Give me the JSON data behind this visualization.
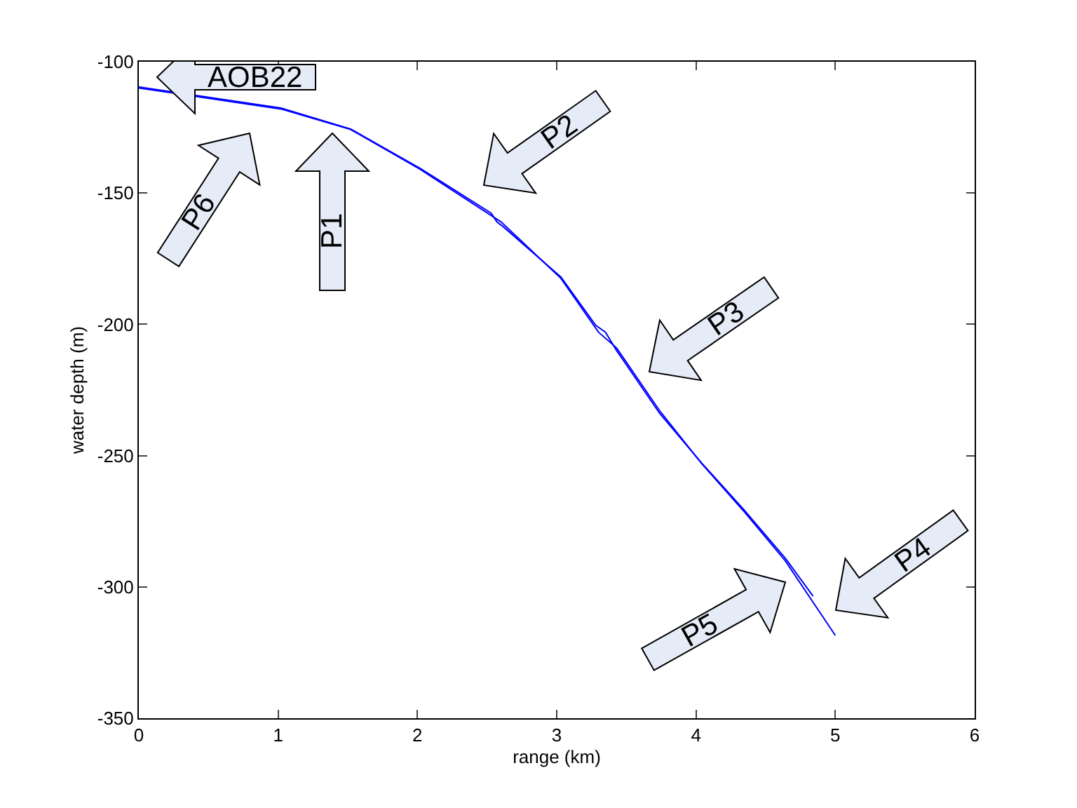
{
  "chart_data": {
    "type": "line",
    "xlabel": "range (km)",
    "ylabel": "water depth (m)",
    "xlim": [
      0,
      6
    ],
    "xticks": [
      0,
      1,
      2,
      3,
      4,
      5,
      6
    ],
    "ylim": [
      -350,
      -100
    ],
    "yticks": [
      -350,
      -300,
      -250,
      -200,
      -150,
      -100
    ],
    "marker": "none",
    "line_style": "solid",
    "series": [
      {
        "color": "#0000ff",
        "x": [
          0,
          1.02,
          1.52,
          2.02,
          2.53,
          2.57,
          2.62,
          3.03,
          3.28,
          3.35,
          3.43,
          3.74,
          4.04,
          4.34,
          4.64,
          4.84
        ],
        "values": [
          -109.6,
          -117.6,
          -125.6,
          -140.6,
          -157.7,
          -161,
          -163,
          -182,
          -200.4,
          -203,
          -210,
          -234,
          -252.8,
          -270.4,
          -289,
          -303.5
        ]
      },
      {
        "color": "#0000ff",
        "x": [
          0,
          1.02,
          1.52,
          2.02,
          2.6,
          3.03,
          3.3,
          3.43,
          3.74,
          4.04,
          4.34,
          4.64,
          5.0
        ],
        "values": [
          -110,
          -118,
          -125.8,
          -141,
          -161,
          -182.5,
          -203,
          -209,
          -233,
          -253,
          -271,
          -290,
          -318.5
        ]
      }
    ],
    "annotations": [
      "AOB22",
      "P6",
      "P1",
      "P2",
      "P3",
      "P4",
      "P5"
    ]
  }
}
